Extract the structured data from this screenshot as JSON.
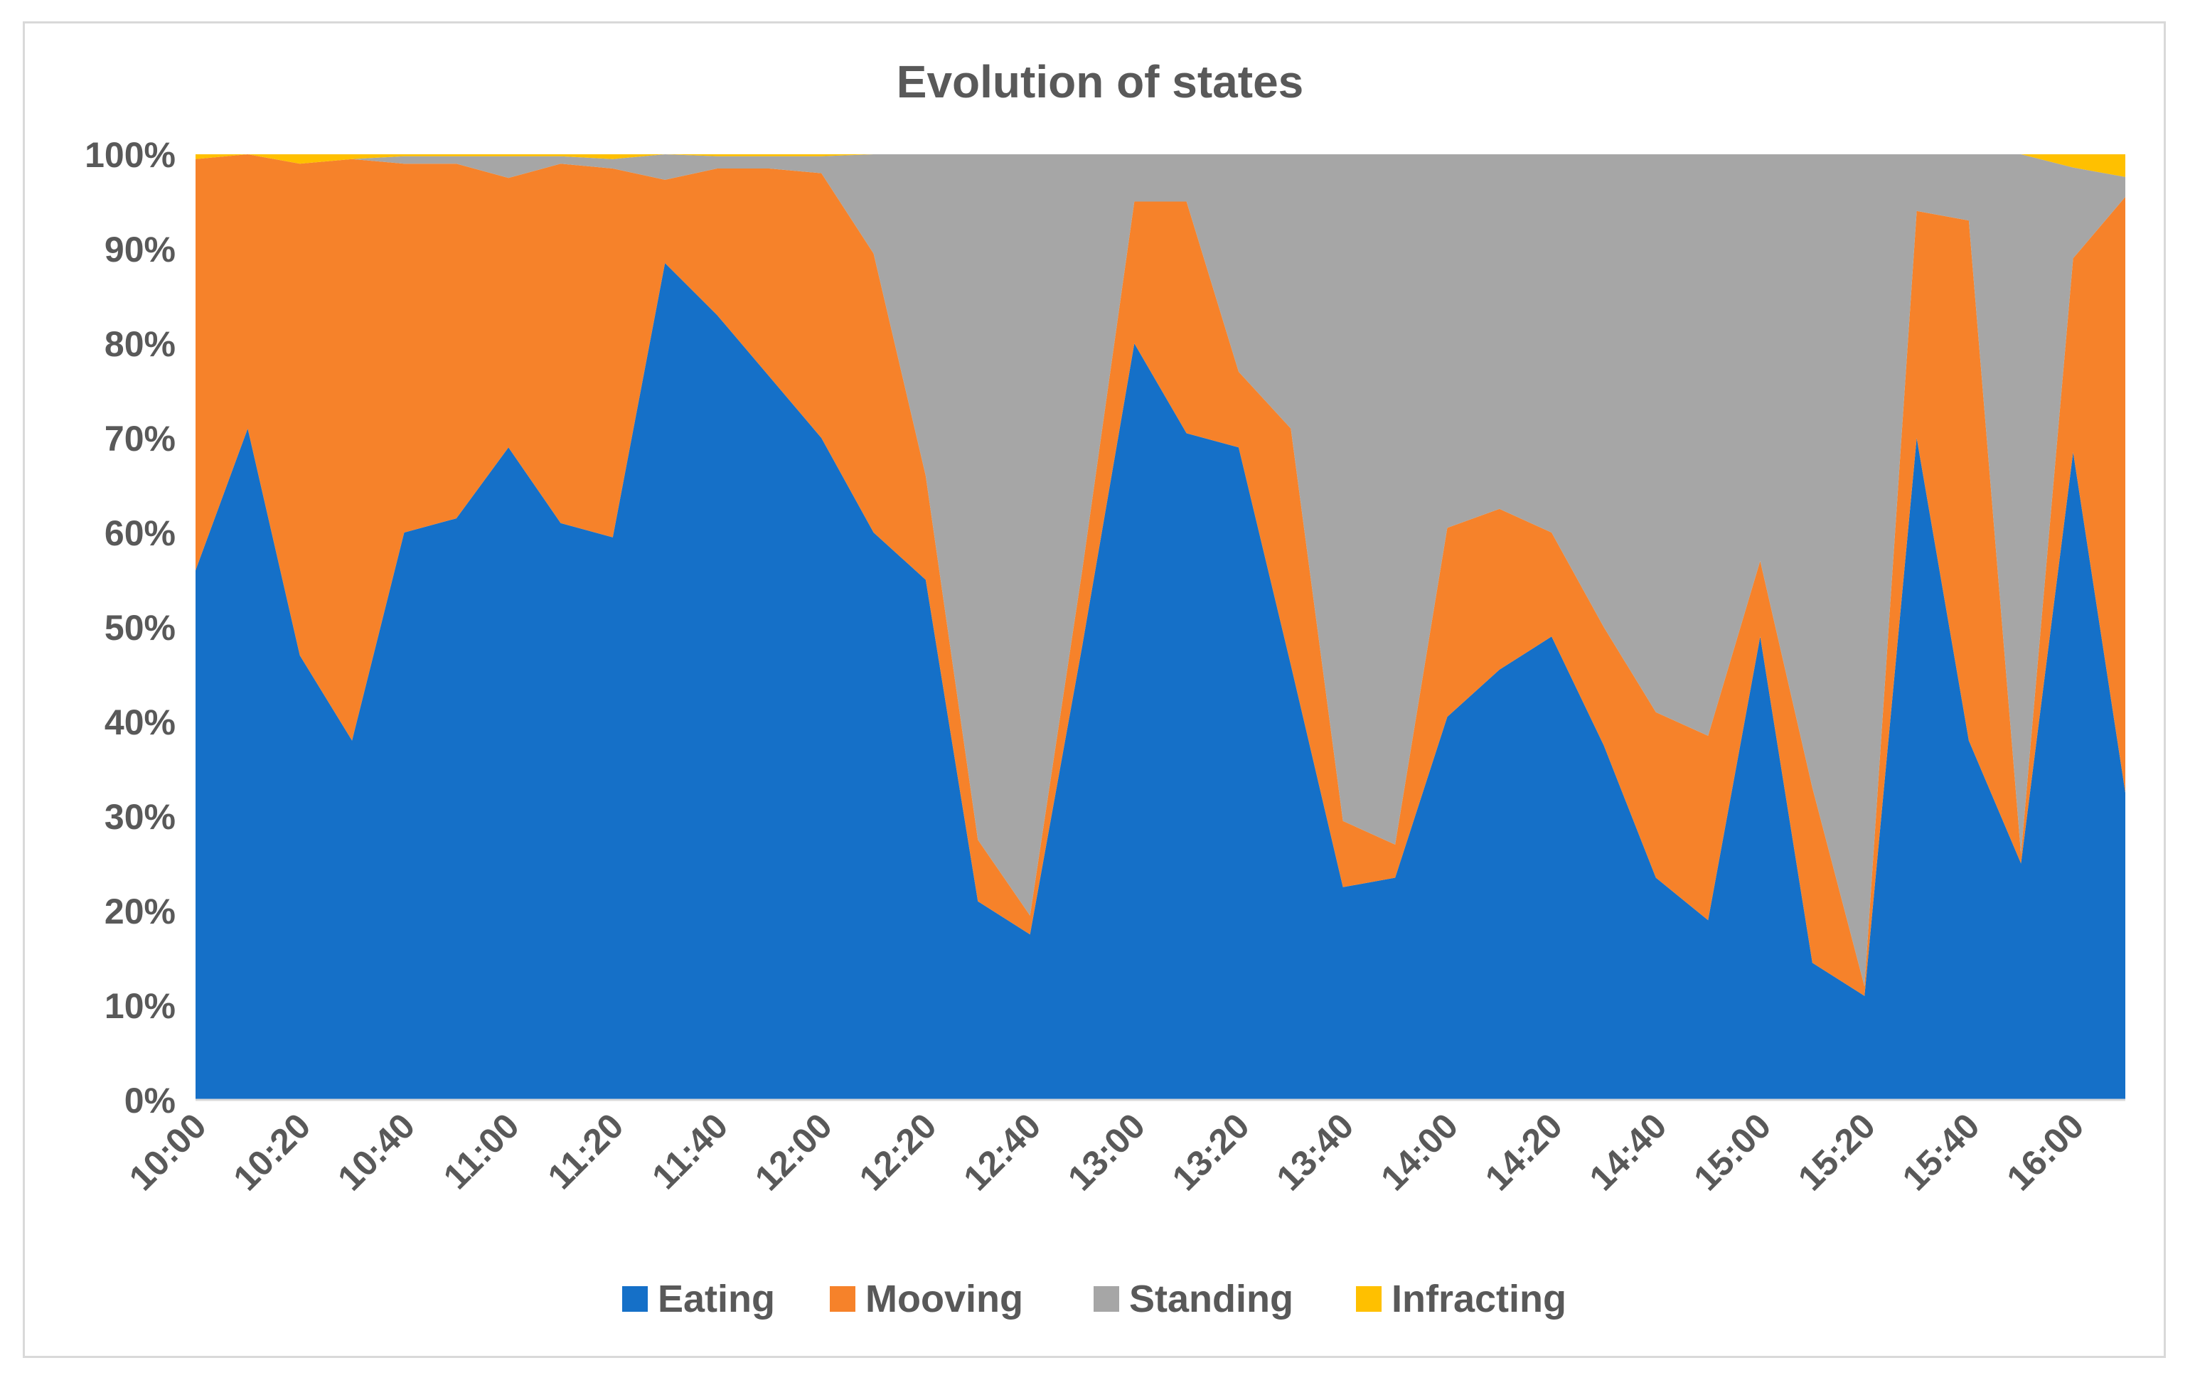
{
  "chart_data": {
    "type": "area",
    "stacked": "percent",
    "title": "Evolution of states",
    "xlabel": "",
    "ylabel": "",
    "ylim": [
      0,
      100
    ],
    "y_ticks": [
      "0%",
      "10%",
      "20%",
      "30%",
      "40%",
      "50%",
      "60%",
      "70%",
      "80%",
      "90%",
      "100%"
    ],
    "x_tick_labels": [
      "10:00",
      "10:20",
      "10:40",
      "11:00",
      "11:20",
      "11:40",
      "12:00",
      "12:20",
      "12:40",
      "13:00",
      "13:20",
      "13:40",
      "14:00",
      "14:20",
      "14:40",
      "15:00",
      "15:20",
      "15:40",
      "16:00"
    ],
    "x": [
      "10:00",
      "10:10",
      "10:20",
      "10:30",
      "10:40",
      "10:50",
      "11:00",
      "11:10",
      "11:20",
      "11:30",
      "11:40",
      "11:50",
      "12:00",
      "12:10",
      "12:20",
      "12:30",
      "12:40",
      "12:50",
      "13:00",
      "13:10",
      "13:20",
      "13:30",
      "13:40",
      "13:50",
      "14:00",
      "14:10",
      "14:20",
      "14:30",
      "14:40",
      "14:50",
      "15:00",
      "15:10",
      "15:20",
      "15:30",
      "15:40",
      "15:50",
      "16:00",
      "16:10"
    ],
    "series": [
      {
        "name": "Eating",
        "color": "#1570c8",
        "values": [
          56,
          71,
          47,
          38,
          60,
          61.5,
          69,
          61,
          59.5,
          88.5,
          83,
          76.5,
          70,
          60,
          55,
          21,
          17.5,
          48,
          80,
          70.5,
          69,
          46,
          22.5,
          23.5,
          40.5,
          45.5,
          49,
          37.5,
          23.5,
          19,
          49,
          14.5,
          11,
          70,
          38,
          25,
          68.5,
          32.5
        ]
      },
      {
        "name": "Mooving",
        "color": "#f6822a",
        "values": [
          43.5,
          29,
          52,
          61.5,
          39,
          37.5,
          28.5,
          38,
          39,
          8.8,
          15.5,
          22,
          28,
          29.5,
          11,
          6.5,
          2,
          8,
          15,
          24.5,
          8,
          25,
          7,
          3.5,
          20,
          17,
          11,
          12.5,
          17.5,
          19.5,
          8,
          18.5,
          1,
          24,
          55,
          1,
          20.5,
          63
        ]
      },
      {
        "name": "Standing",
        "color": "#a6a6a6",
        "values": [
          0,
          0,
          0,
          0,
          0.8,
          0.8,
          2.3,
          0.8,
          1,
          2.7,
          1.3,
          1.3,
          1.8,
          10.5,
          34,
          72.5,
          80.5,
          44,
          5,
          5,
          23,
          29,
          70.5,
          73,
          39.5,
          37.5,
          40,
          50,
          59,
          61.5,
          43,
          67,
          88,
          6,
          7,
          74,
          9.6,
          2.1
        ]
      },
      {
        "name": "Infracting",
        "color": "#ffc000",
        "values": [
          0.5,
          0,
          1,
          0.5,
          0.2,
          0.2,
          0.2,
          0.2,
          0.5,
          0,
          0.2,
          0.2,
          0.2,
          0,
          0,
          0,
          0,
          0,
          0,
          0,
          0,
          0,
          0,
          0,
          0,
          0,
          0,
          0,
          0,
          0,
          0,
          0,
          0,
          0,
          0,
          0,
          1.4,
          2.4
        ]
      }
    ],
    "legend": [
      "Eating",
      "Mooving",
      "Standing",
      "Infracting"
    ],
    "legend_position": "bottom",
    "grid": false
  }
}
